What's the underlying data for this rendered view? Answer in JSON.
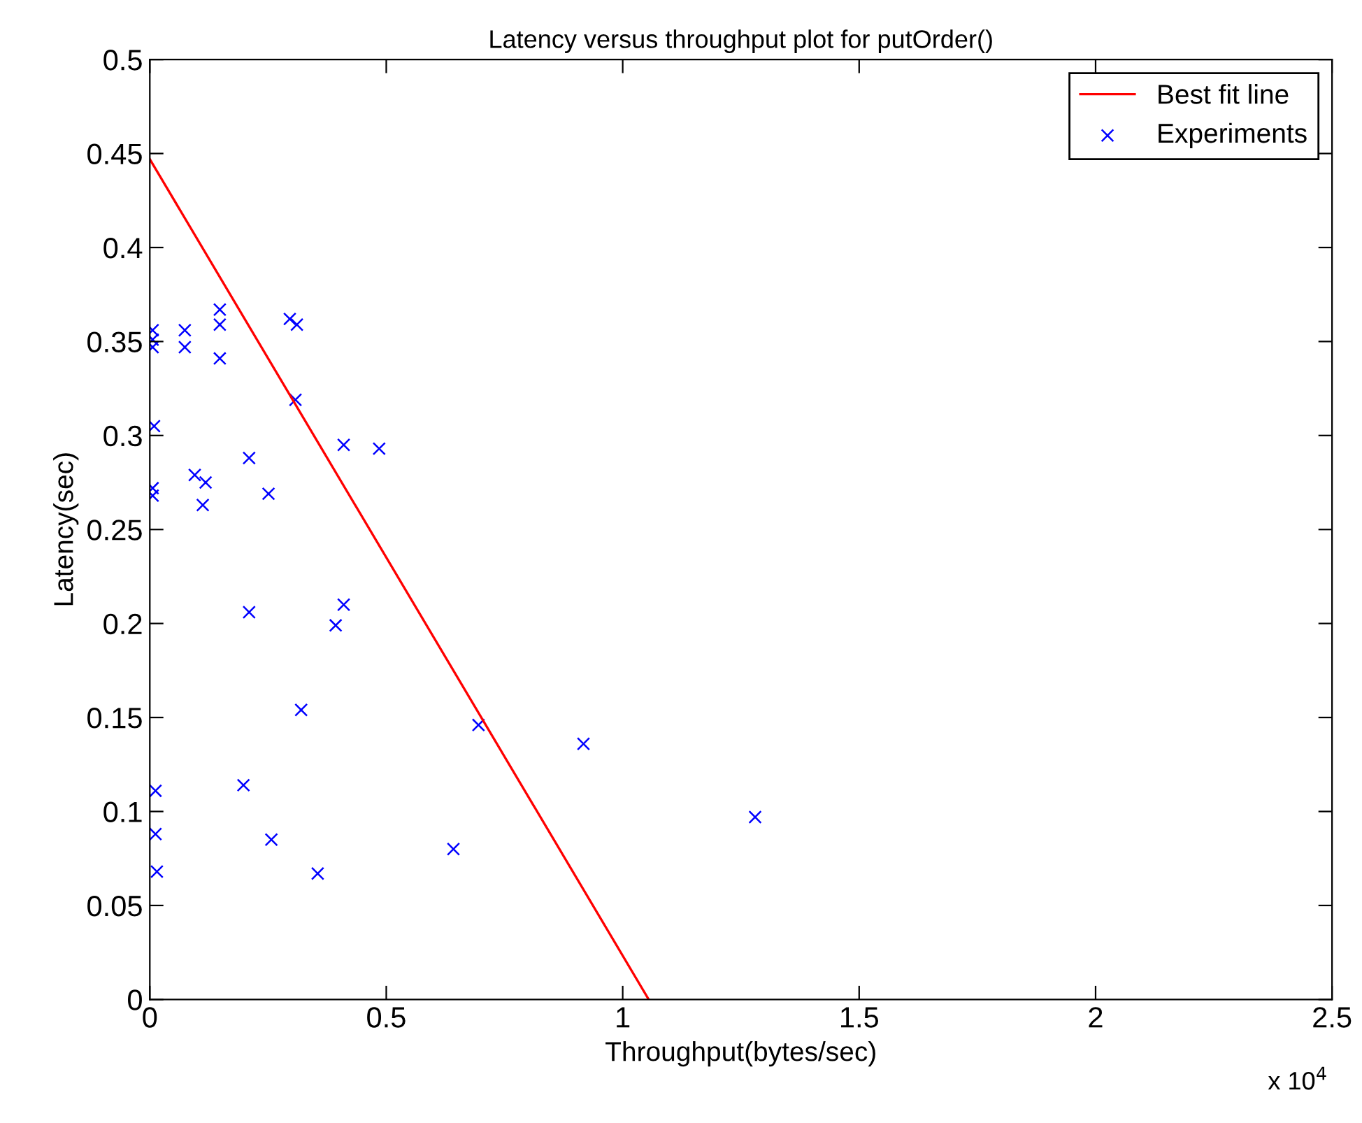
{
  "chart_data": {
    "type": "scatter",
    "title": "Latency versus throughput plot for putOrder()",
    "xlabel": "Throughput(bytes/sec)",
    "ylabel": "Latency(sec)",
    "annotations": [
      "x 10$^{4}$"
    ],
    "xlim": [
      0,
      2.5
    ],
    "xticks": [
      0,
      0.5,
      1,
      1.5,
      2,
      2.5
    ],
    "ylim": [
      0,
      0.5
    ],
    "yticks": [
      0,
      0.05,
      0.1,
      0.15,
      0.2,
      0.25,
      0.3,
      0.35,
      0.4,
      0.45,
      0.5
    ],
    "legend": "top right",
    "grid": false,
    "series": [
      {
        "name": "Best fit line",
        "type": "line",
        "color": "#ff0000",
        "marker": "none",
        "line_style": "solid",
        "x": [
          0,
          1.055
        ],
        "values": [
          0.447,
          0
        ]
      },
      {
        "name": "Experiments",
        "color": "#0000ff",
        "marker": "cross",
        "x": [
          0.006,
          0.006,
          0.006,
          0.009,
          0.006,
          0.006,
          0.012,
          0.012,
          0.015,
          0.074,
          0.074,
          0.148,
          0.148,
          0.148,
          0.095,
          0.118,
          0.112,
          0.21,
          0.251,
          0.296,
          0.311,
          0.308,
          0.41,
          0.485,
          0.21,
          0.41,
          0.393,
          0.32,
          0.198,
          0.257,
          0.355,
          0.695,
          0.642,
          0.917,
          1.28
        ],
        "values": [
          0.356,
          0.351,
          0.347,
          0.305,
          0.268,
          0.272,
          0.111,
          0.088,
          0.068,
          0.356,
          0.347,
          0.367,
          0.359,
          0.341,
          0.279,
          0.275,
          0.263,
          0.288,
          0.269,
          0.362,
          0.359,
          0.319,
          0.295,
          0.293,
          0.206,
          0.21,
          0.199,
          0.154,
          0.114,
          0.085,
          0.067,
          0.146,
          0.08,
          0.136,
          0.097
        ]
      }
    ]
  }
}
